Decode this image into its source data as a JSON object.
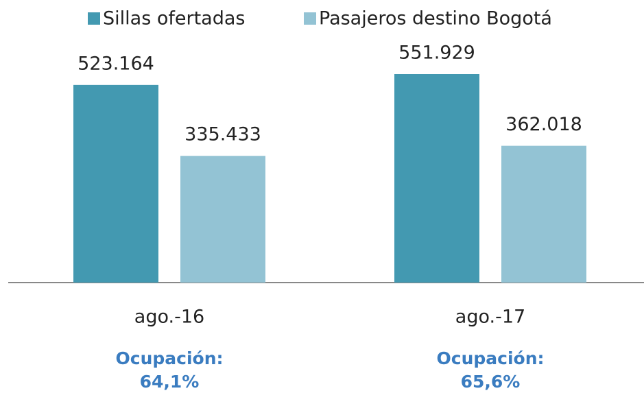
{
  "chart_data": {
    "type": "bar",
    "categories": [
      "ago.-16",
      "ago.-17"
    ],
    "series": [
      {
        "name": "Sillas ofertadas",
        "color": "#4399b1",
        "values": [
          523164,
          551929
        ],
        "value_labels": [
          "523.164",
          "551.929"
        ]
      },
      {
        "name": "Pasajeros destino Bogotá",
        "color": "#93c3d4",
        "values": [
          335433,
          362018
        ],
        "value_labels": [
          "335.433",
          "362.018"
        ]
      }
    ],
    "annotations": [
      {
        "label": "Ocupación:",
        "value": "64,1%"
      },
      {
        "label": "Ocupación:",
        "value": "65,6%"
      }
    ],
    "legend": "top"
  }
}
